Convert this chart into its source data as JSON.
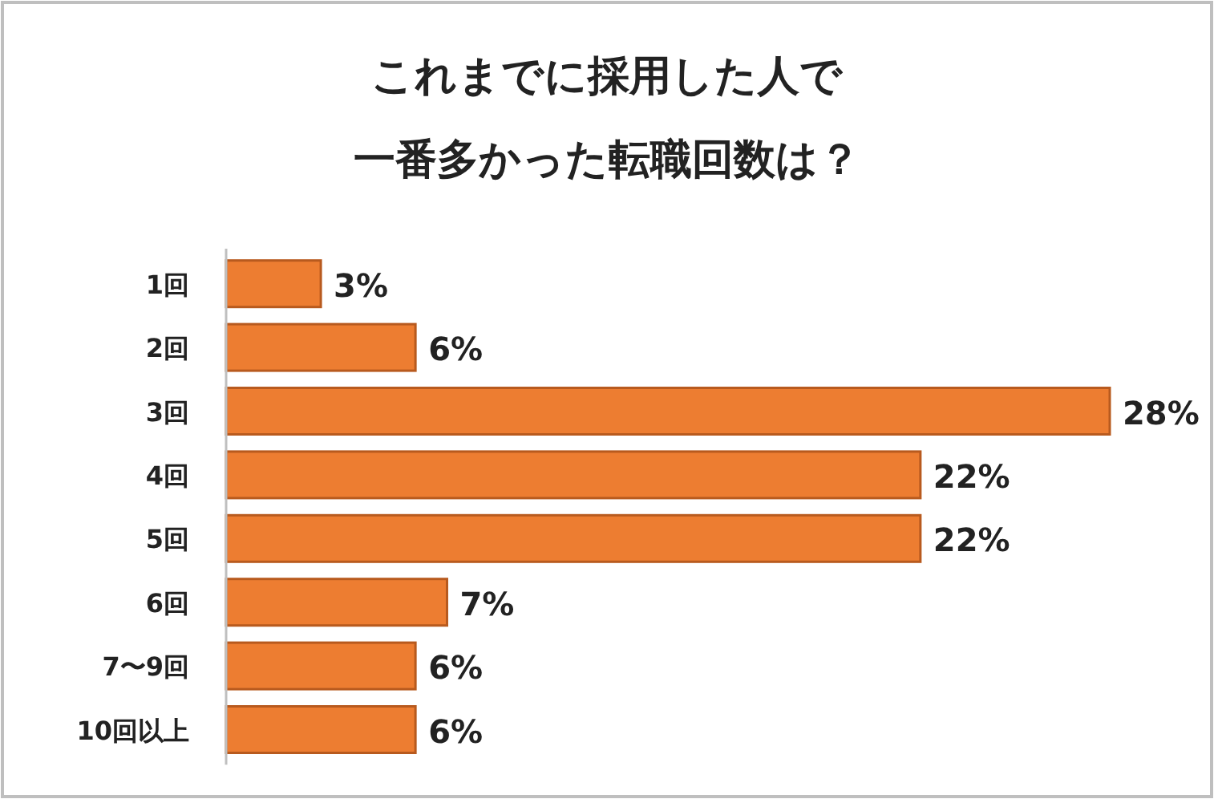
{
  "chart_data": {
    "type": "bar",
    "orientation": "horizontal",
    "title": "これまでに採用した人で一番多かった転職回数は？",
    "categories": [
      "1回",
      "2回",
      "3回",
      "4回",
      "5回",
      "6回",
      "7〜9回",
      "10回以上"
    ],
    "values": [
      3,
      6,
      28,
      22,
      22,
      7,
      6,
      6
    ],
    "value_labels": [
      "3%",
      "6%",
      "28%",
      "22%",
      "22%",
      "7%",
      "6%",
      "6%"
    ],
    "color": "#ed7d31"
  }
}
